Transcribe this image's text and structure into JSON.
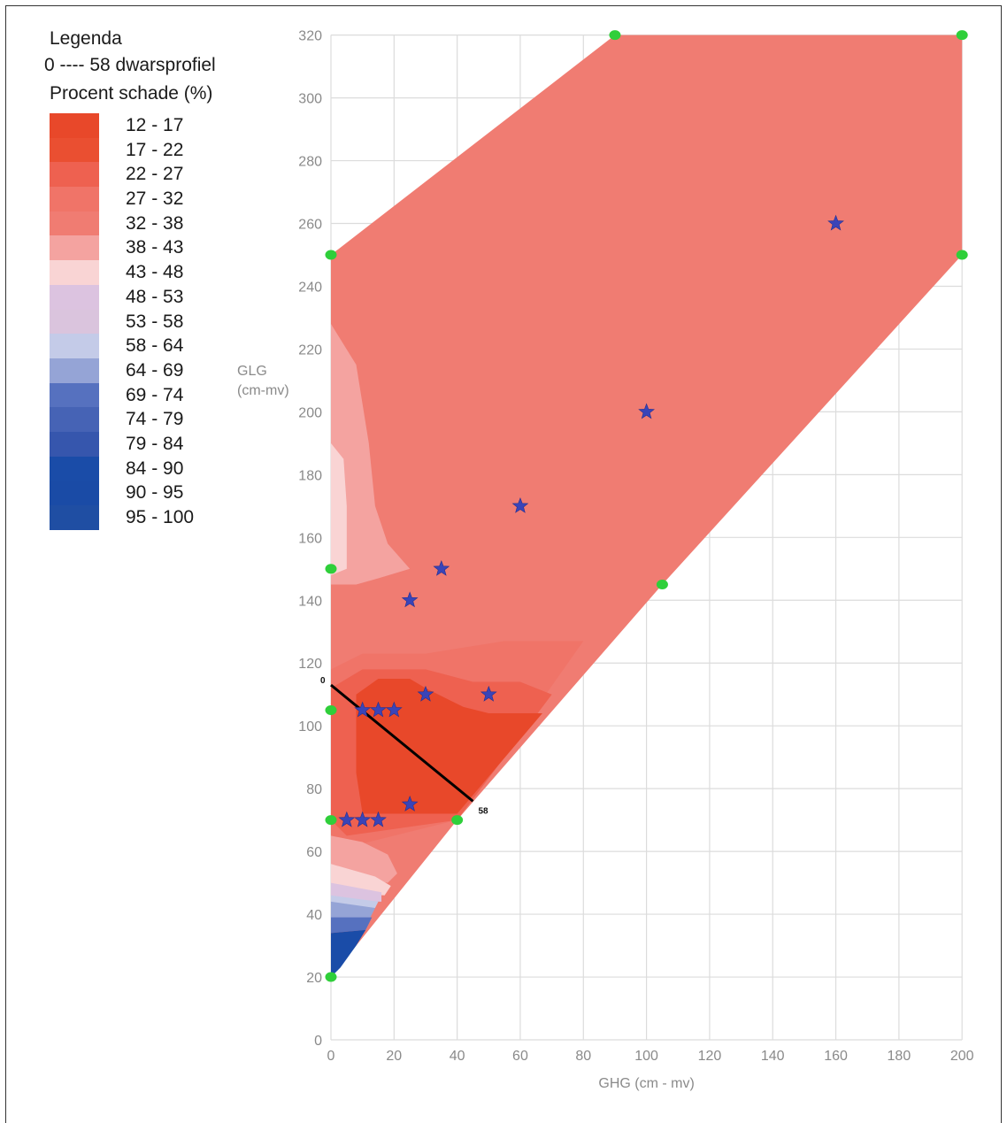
{
  "legend": {
    "title": "Legenda",
    "profile_label": "0 ---- 58 dwarsprofiel",
    "schade_title": "Procent schade (%)",
    "classes": [
      {
        "label": "12 - 17",
        "color": "#e8482a"
      },
      {
        "label": "17 - 22",
        "color": "#ea4f31"
      },
      {
        "label": "22 - 27",
        "color": "#ee6150"
      },
      {
        "label": "27 - 32",
        "color": "#f07468"
      },
      {
        "label": "32 - 38",
        "color": "#f07c72"
      },
      {
        "label": "38 - 43",
        "color": "#f4a3a0"
      },
      {
        "label": "43 - 48",
        "color": "#f9d4d4"
      },
      {
        "label": "48 - 53",
        "color": "#dcc3e0"
      },
      {
        "label": "53 - 58",
        "color": "#dac4dd"
      },
      {
        "label": "58 - 64",
        "color": "#c4cbe8"
      },
      {
        "label": "64 - 69",
        "color": "#95a4d6"
      },
      {
        "label": "69 - 74",
        "color": "#5671bf"
      },
      {
        "label": "74 - 79",
        "color": "#4663b5"
      },
      {
        "label": "79 - 84",
        "color": "#3656ad"
      },
      {
        "label": "84 - 90",
        "color": "#1a4ca8"
      },
      {
        "label": "90 - 95",
        "color": "#1a4ba6"
      },
      {
        "label": "95 - 100",
        "color": "#1f4ea3"
      }
    ]
  },
  "chart_data": {
    "type": "heatmap",
    "xlabel": "GHG (cm - mv)",
    "ylabel_line1": "GLG",
    "ylabel_line2": "(cm-mv)",
    "xlim": [
      0,
      200
    ],
    "ylim": [
      0,
      320
    ],
    "x_ticks": [
      0,
      20,
      40,
      60,
      80,
      100,
      120,
      140,
      160,
      180,
      200
    ],
    "y_ticks": [
      0,
      20,
      40,
      60,
      80,
      100,
      120,
      140,
      160,
      180,
      200,
      220,
      240,
      260,
      280,
      300,
      320
    ],
    "grid": true,
    "domain_corners": [
      {
        "x": 90,
        "y": 320
      },
      {
        "x": 200,
        "y": 320
      },
      {
        "x": 200,
        "y": 250
      },
      {
        "x": 105,
        "y": 145
      },
      {
        "x": 40,
        "y": 70
      },
      {
        "x": 0,
        "y": 20
      },
      {
        "x": 0,
        "y": 70
      },
      {
        "x": 0,
        "y": 105
      },
      {
        "x": 0,
        "y": 150
      },
      {
        "x": 0,
        "y": 250
      }
    ],
    "stars": [
      {
        "x": 160,
        "y": 260
      },
      {
        "x": 100,
        "y": 200
      },
      {
        "x": 60,
        "y": 170
      },
      {
        "x": 35,
        "y": 150
      },
      {
        "x": 25,
        "y": 140
      },
      {
        "x": 30,
        "y": 110
      },
      {
        "x": 50,
        "y": 110
      },
      {
        "x": 10,
        "y": 105
      },
      {
        "x": 15,
        "y": 105
      },
      {
        "x": 20,
        "y": 105
      },
      {
        "x": 25,
        "y": 75
      },
      {
        "x": 5,
        "y": 70
      },
      {
        "x": 10,
        "y": 70
      },
      {
        "x": 15,
        "y": 70
      }
    ],
    "profile_line": {
      "start": {
        "x": 0,
        "y": 113,
        "label": "0"
      },
      "end": {
        "x": 45,
        "y": 76,
        "label": "58"
      }
    },
    "zones": [
      {
        "class": "32 - 38",
        "points": [
          [
            0,
            250
          ],
          [
            90,
            320
          ],
          [
            200,
            320
          ],
          [
            200,
            250
          ],
          [
            105,
            145
          ],
          [
            40,
            70
          ],
          [
            0,
            20
          ]
        ]
      },
      {
        "class": "38 - 43",
        "points": [
          [
            0,
            228
          ],
          [
            8,
            215
          ],
          [
            12,
            190
          ],
          [
            14,
            170
          ],
          [
            18,
            158
          ],
          [
            25,
            150
          ],
          [
            15,
            147
          ],
          [
            8,
            145
          ],
          [
            0,
            145
          ]
        ]
      },
      {
        "class": "43 - 48",
        "points": [
          [
            0,
            190
          ],
          [
            4,
            185
          ],
          [
            5,
            170
          ],
          [
            5,
            150
          ],
          [
            0,
            148
          ]
        ]
      },
      {
        "class": "27 - 32",
        "points": [
          [
            0,
            118
          ],
          [
            10,
            123
          ],
          [
            30,
            123
          ],
          [
            55,
            127
          ],
          [
            80,
            127
          ],
          [
            40,
            70
          ],
          [
            0,
            60
          ]
        ]
      },
      {
        "class": "22 - 27",
        "points": [
          [
            0,
            112
          ],
          [
            10,
            118
          ],
          [
            30,
            118
          ],
          [
            45,
            114
          ],
          [
            60,
            114
          ],
          [
            70,
            110
          ],
          [
            40,
            70
          ],
          [
            5,
            65
          ],
          [
            0,
            70
          ]
        ]
      },
      {
        "class": "12 - 17",
        "points": [
          [
            8,
            110
          ],
          [
            15,
            115
          ],
          [
            25,
            115
          ],
          [
            30,
            112
          ],
          [
            42,
            106
          ],
          [
            50,
            104
          ],
          [
            67,
            104
          ],
          [
            40,
            72
          ],
          [
            10,
            72
          ],
          [
            8,
            85
          ]
        ]
      },
      {
        "class": "38 - 43",
        "points": [
          [
            0,
            65
          ],
          [
            10,
            63
          ],
          [
            18,
            59
          ],
          [
            21,
            53
          ],
          [
            18,
            50
          ],
          [
            0,
            52
          ]
        ]
      },
      {
        "class": "43 - 48",
        "points": [
          [
            0,
            56
          ],
          [
            14,
            52
          ],
          [
            19,
            49
          ],
          [
            17,
            46
          ],
          [
            0,
            47
          ]
        ]
      },
      {
        "class": "48 - 53",
        "points": [
          [
            0,
            50
          ],
          [
            16,
            47
          ],
          [
            16,
            44
          ],
          [
            0,
            44
          ]
        ]
      },
      {
        "class": "58 - 64",
        "points": [
          [
            0,
            46
          ],
          [
            15,
            44
          ],
          [
            14,
            42
          ],
          [
            0,
            42
          ]
        ]
      },
      {
        "class": "64 - 69",
        "points": [
          [
            0,
            44
          ],
          [
            14,
            42
          ],
          [
            12,
            38
          ],
          [
            0,
            38
          ]
        ]
      },
      {
        "class": "69 - 74",
        "points": [
          [
            0,
            39
          ],
          [
            13,
            39
          ],
          [
            11,
            35
          ],
          [
            0,
            34
          ]
        ]
      },
      {
        "class": "84 - 90",
        "points": [
          [
            0,
            34
          ],
          [
            11,
            35
          ],
          [
            8,
            30
          ],
          [
            3,
            23
          ],
          [
            0,
            20
          ]
        ]
      }
    ]
  }
}
